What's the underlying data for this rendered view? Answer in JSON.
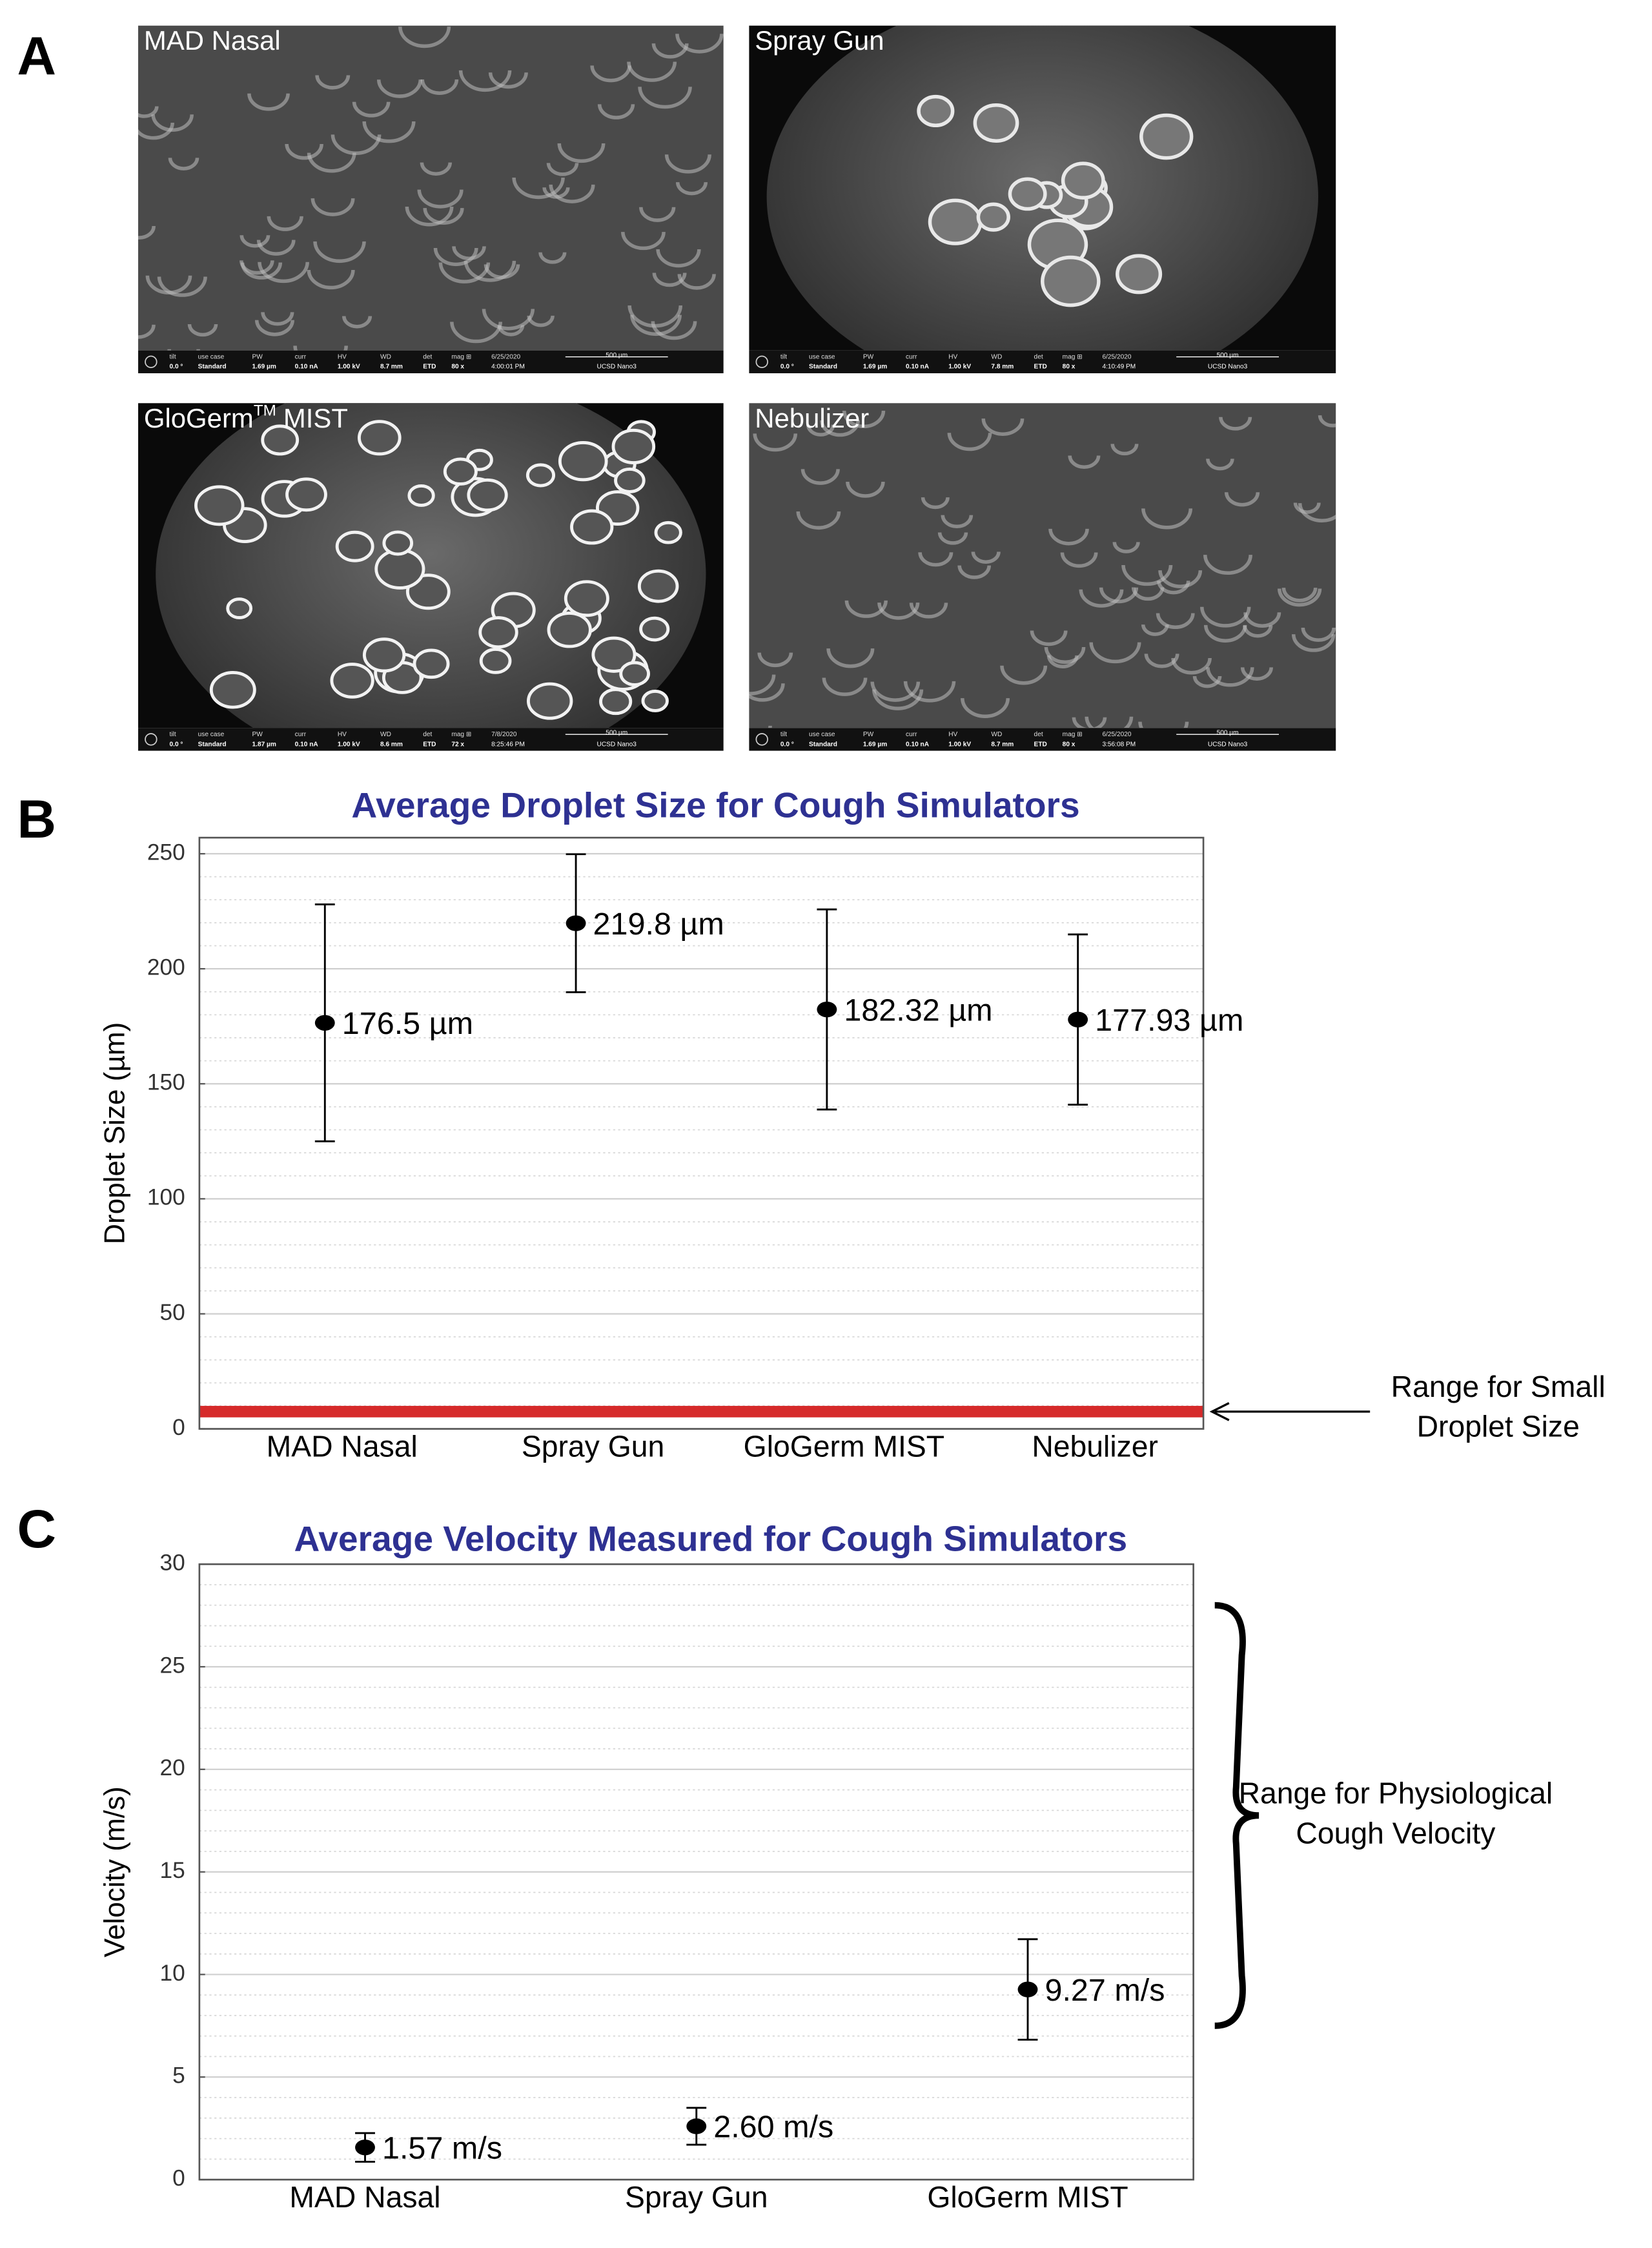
{
  "panel_labels": [
    "A",
    "B",
    "C"
  ],
  "info_headers": [
    "tilt",
    "use case",
    "PW",
    "curr",
    "HV",
    "WD",
    "det",
    "mag ⊞"
  ],
  "images": [
    {
      "title": "MAD Nasal",
      "values": [
        "0.0 °",
        "Standard",
        "1.69 µm",
        "0.10 nA",
        "1.00 kV",
        "8.7 mm",
        "ETD",
        "80 x"
      ],
      "date": "6/25/2020",
      "time": "4:00:01 PM",
      "scale": "500 µm",
      "lab": "UCSD Nano3"
    },
    {
      "title": "Spray Gun",
      "values": [
        "0.0 °",
        "Standard",
        "1.69 µm",
        "0.10 nA",
        "1.00 kV",
        "7.8 mm",
        "ETD",
        "80 x"
      ],
      "date": "6/25/2020",
      "time": "4:10:49 PM",
      "scale": "500 µm",
      "lab": "UCSD Nano3"
    },
    {
      "title": "GloGerm",
      "title_sup": "TM",
      "title_suffix": "MIST",
      "values": [
        "0.0 °",
        "Standard",
        "1.87 µm",
        "0.10 nA",
        "1.00 kV",
        "8.6 mm",
        "ETD",
        "72 x"
      ],
      "date": "7/8/2020",
      "time": "8:25:46 PM",
      "scale": "500 µm",
      "lab": "UCSD Nano3"
    },
    {
      "title": "Nebulizer",
      "values": [
        "0.0 °",
        "Standard",
        "1.69 µm",
        "0.10 nA",
        "1.00 kV",
        "8.7 mm",
        "ETD",
        "80 x"
      ],
      "date": "6/25/2020",
      "time": "3:56:08 PM",
      "scale": "500 µm",
      "lab": "UCSD Nano3"
    }
  ],
  "chart_data": [
    {
      "type": "errorbar",
      "title": "Average Droplet Size for Cough Simulators",
      "ylabel": "Droplet Size (µm)",
      "categories": [
        "MAD Nasal",
        "Spray Gun",
        "GloGerm MIST",
        "Nebulizer"
      ],
      "values": [
        176.5,
        219.8,
        182.32,
        177.93
      ],
      "errors": [
        51.5,
        30,
        43.5,
        37
      ],
      "value_labels": [
        "176.5 µm",
        "219.8 µm",
        "182.32 µm",
        "177.93 µm"
      ],
      "ylim": [
        0,
        257
      ],
      "yticks": [
        0,
        50,
        100,
        150,
        200,
        250
      ],
      "grid": true,
      "minor_grid": true,
      "color": "#000000",
      "annotation": {
        "kind": "arrow",
        "range": [
          5,
          10
        ],
        "color": "#d62a2a",
        "label": [
          "Range for Small",
          "Droplet Size"
        ]
      }
    },
    {
      "type": "errorbar",
      "title": "Average Velocity Measured for Cough Simulators",
      "ylabel": "Velocity (m/s)",
      "categories": [
        "MAD Nasal",
        "Spray Gun",
        "GloGerm MIST"
      ],
      "values": [
        1.57,
        2.6,
        9.27
      ],
      "errors": [
        0.7,
        0.9,
        2.45
      ],
      "value_labels": [
        "1.57 m/s",
        "2.60 m/s",
        "9.27 m/s"
      ],
      "ylim": [
        0,
        30
      ],
      "yticks": [
        0,
        5,
        10,
        15,
        20,
        25,
        30
      ],
      "grid": true,
      "minor_grid": true,
      "color": "#000000",
      "annotation": {
        "kind": "brace",
        "range": [
          7.5,
          28
        ],
        "color": "#000000",
        "label": [
          "Range for Physiological",
          "Cough Velocity"
        ]
      }
    }
  ]
}
